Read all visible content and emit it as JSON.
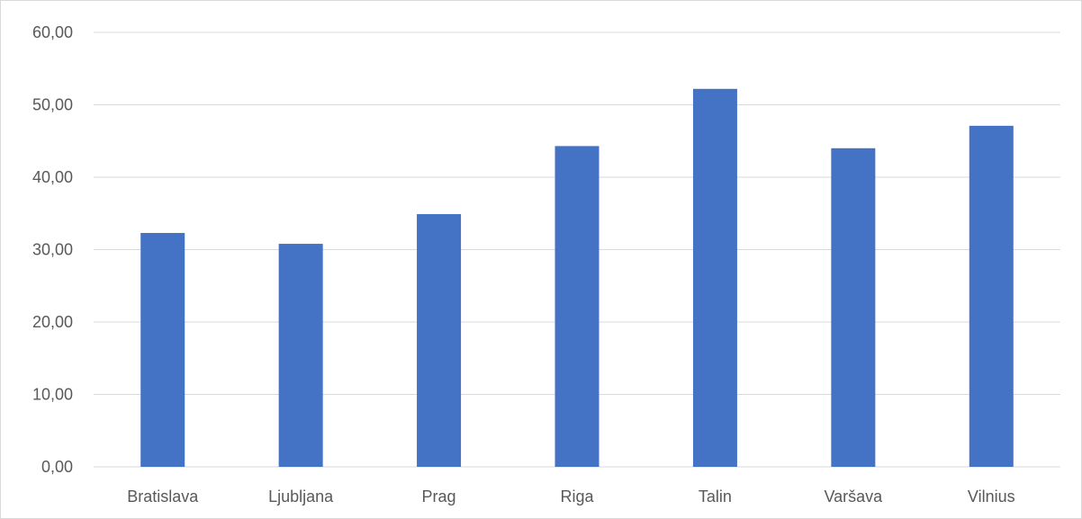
{
  "chart_data": {
    "type": "bar",
    "title": "",
    "xlabel": "",
    "ylabel": "",
    "categories": [
      "Bratislava",
      "Ljubljana",
      "Prag",
      "Riga",
      "Talin",
      "Varšava",
      "Vilnius"
    ],
    "values": [
      32.3,
      30.8,
      34.9,
      44.3,
      52.2,
      44.0,
      47.1
    ],
    "ylim": [
      0,
      60
    ],
    "yticks": [
      "0,00",
      "10,00",
      "20,00",
      "30,00",
      "40,00",
      "50,00",
      "60,00"
    ],
    "grid": true,
    "legend": "none",
    "bar_color": "#4472c4",
    "grid_color": "#d9d9d9",
    "text_color": "#595959"
  }
}
